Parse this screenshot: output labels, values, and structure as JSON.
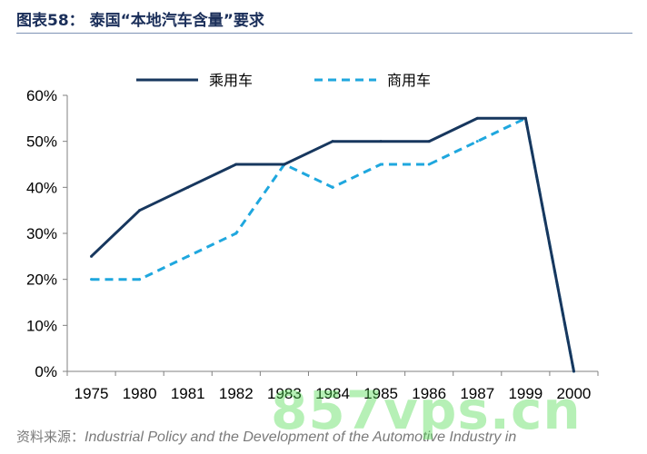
{
  "page": {
    "title": "图表58：  泰国“本地汽车含量”要求",
    "source_label": "资料来源：",
    "source_text": "Industrial Policy and the Development of the Automotive Industry in",
    "watermark": "857vps.cn"
  },
  "chart_data": {
    "type": "line",
    "categories": [
      "1975",
      "1980",
      "1981",
      "1982",
      "1983",
      "1984",
      "1985",
      "1986",
      "1987",
      "1999",
      "2000"
    ],
    "series": [
      {
        "name": "乘用车",
        "values": [
          25,
          35,
          40,
          45,
          45,
          50,
          50,
          50,
          55,
          55,
          0
        ],
        "color": "#17375e",
        "style": "solid"
      },
      {
        "name": "商用车",
        "values": [
          20,
          20,
          25,
          30,
          45,
          40,
          45,
          45,
          50,
          55,
          0
        ],
        "color": "#1fa7de",
        "style": "dashed"
      }
    ],
    "y_ticks": [
      "0%",
      "10%",
      "20%",
      "30%",
      "40%",
      "50%",
      "60%"
    ],
    "ylim": [
      0,
      60
    ],
    "legend_position": "top",
    "grid": false
  }
}
